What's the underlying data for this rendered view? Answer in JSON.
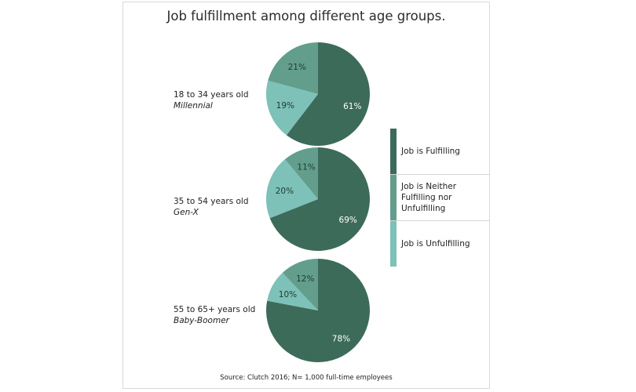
{
  "chart_data": {
    "type": "pie",
    "title": "Job fulfillment among different age groups.",
    "categories": [
      "Job is Fulfilling",
      "Job is Neither Fulfilling nor Unfulfilling",
      "Job is Unfulfilling"
    ],
    "colors": [
      "#3d6b59",
      "#639e8c",
      "#7dc1b8"
    ],
    "pies": [
      {
        "label": "18 to 34 years old",
        "sublabel": "Millennial",
        "values": [
          61,
          21,
          19
        ],
        "value_labels": [
          "61%",
          "21%",
          "19%"
        ]
      },
      {
        "label": "35 to 54 years old",
        "sublabel": "Gen-X",
        "values": [
          69,
          11,
          20
        ],
        "value_labels": [
          "69%",
          "11%",
          "20%"
        ]
      },
      {
        "label": "55 to 65+ years old",
        "sublabel": "Baby-Boomer",
        "values": [
          78,
          12,
          10
        ],
        "value_labels": [
          "78%",
          "12%",
          "10%"
        ]
      }
    ],
    "legend_position": "right",
    "source": "Source:  Clutch 2016; N= 1,000 full-time employees"
  }
}
